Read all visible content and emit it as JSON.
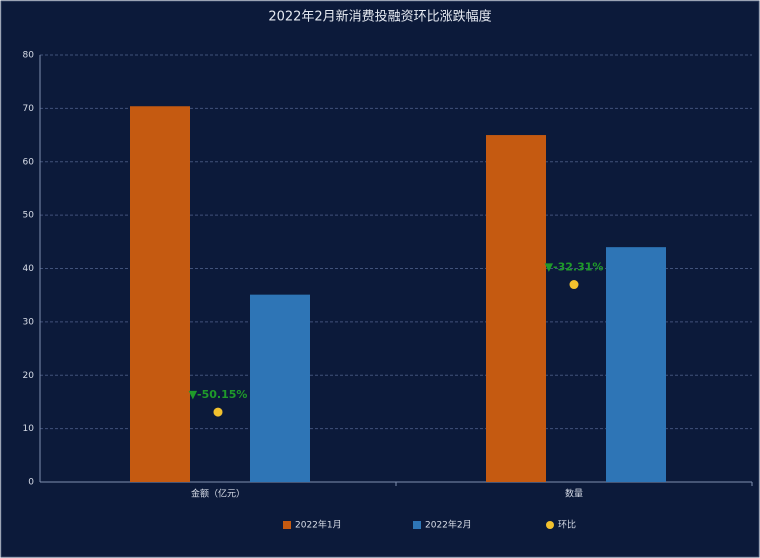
{
  "chart_data": {
    "type": "bar",
    "title": "2022年2月新消费投融资环比涨跌幅度",
    "categories": [
      "金额（亿元）",
      "数量"
    ],
    "series": [
      {
        "name": "2022年1月",
        "color": "#c55a11",
        "values": [
          70.4,
          65
        ]
      },
      {
        "name": "2022年2月",
        "color": "#2e75b6",
        "values": [
          35.1,
          44
        ]
      },
      {
        "name": "环比",
        "type": "scatter",
        "color": "#f2c12e",
        "values": [
          13.1,
          37
        ]
      }
    ],
    "annotations": [
      "▼-50.15%",
      "▼-32.31%"
    ],
    "ylim": [
      0,
      80
    ],
    "yticks": [
      0,
      10,
      20,
      30,
      40,
      50,
      60,
      70,
      80
    ],
    "grid": true
  }
}
